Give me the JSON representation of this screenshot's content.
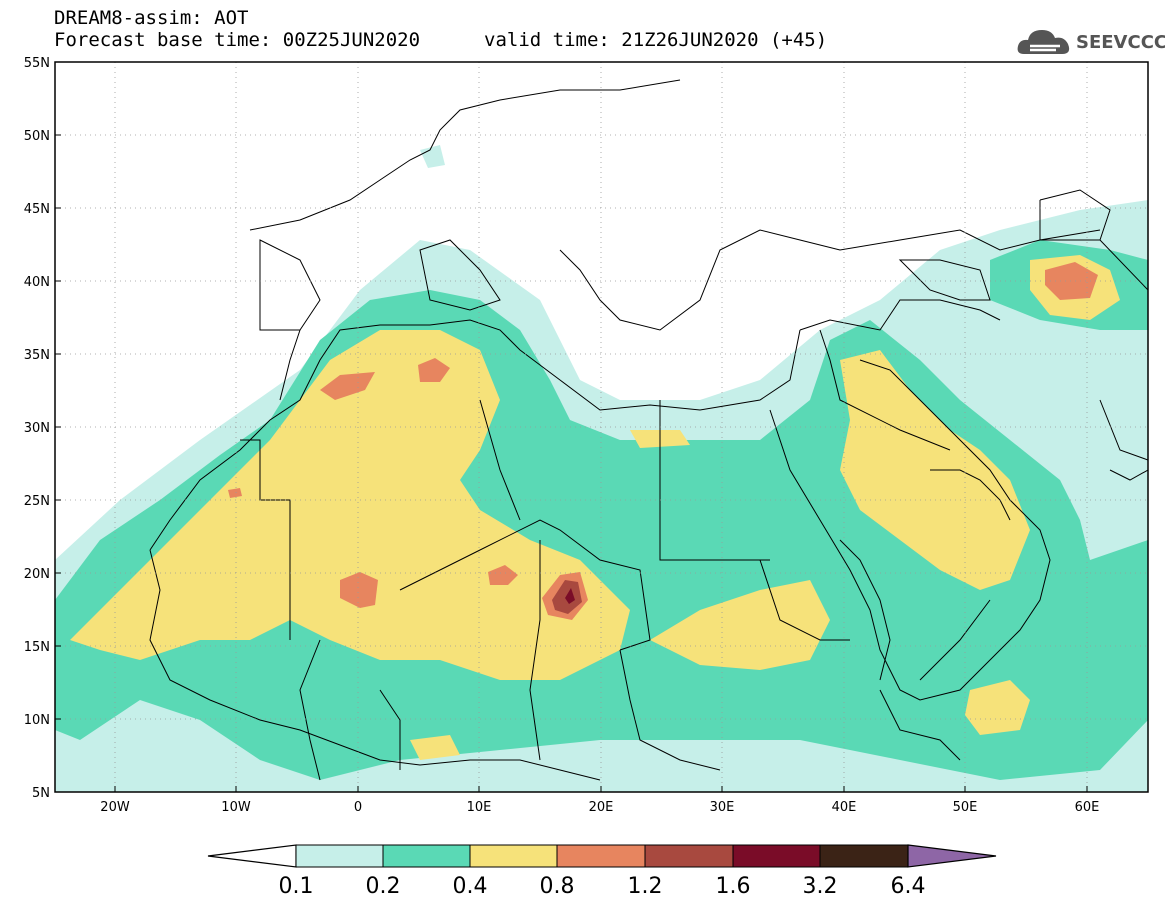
{
  "header": {
    "title": "DREAM8-assim: AOT",
    "base_time": "Forecast base time: 00Z25JUN2020",
    "valid_time": "valid time: 21Z26JUN2020 (+45)"
  },
  "logo": {
    "text": "SEEVCCC",
    "icon": "cloud-icon"
  },
  "map": {
    "lon_range": [
      -25,
      65
    ],
    "lat_range": [
      5,
      55
    ],
    "lat_labels": [
      "55N",
      "50N",
      "45N",
      "40N",
      "35N",
      "30N",
      "25N",
      "20N",
      "15N",
      "10N",
      "5N"
    ],
    "lon_labels": [
      "20W",
      "10W",
      "0",
      "10E",
      "20E",
      "30E",
      "40E",
      "50E",
      "60E"
    ]
  },
  "colorbar": {
    "labels": [
      "0.1",
      "0.2",
      "0.4",
      "0.8",
      "1.2",
      "1.6",
      "3.2",
      "6.4"
    ],
    "colors": [
      "#ffffff",
      "#c6efe9",
      "#5ad9b5",
      "#f6e27a",
      "#e7855f",
      "#a8493f",
      "#7a0c28",
      "#3b2316",
      "#8e66a6"
    ]
  },
  "colors": {
    "c1": "#c6efe9",
    "c2": "#5ad9b5",
    "c3": "#f6e27a",
    "c4": "#e7855f",
    "c5": "#a8493f",
    "c6": "#7a0c28"
  }
}
